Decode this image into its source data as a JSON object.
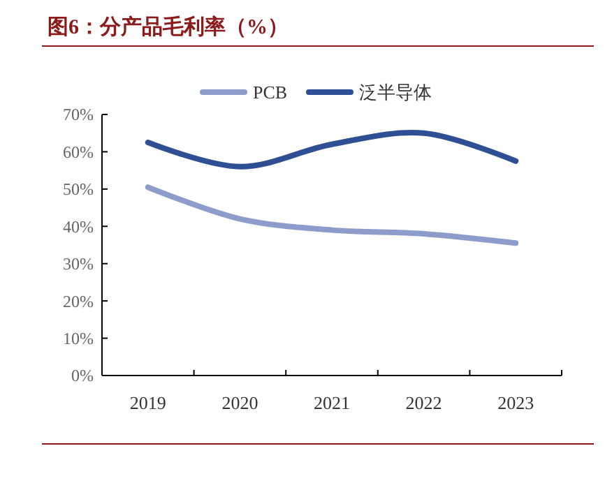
{
  "chart_data": {
    "type": "line",
    "title": "图6：分产品毛利率（%）",
    "categories": [
      "2019",
      "2020",
      "2021",
      "2022",
      "2023"
    ],
    "series": [
      {
        "name": "PCB",
        "color": "#8e9ccb",
        "values": [
          50.5,
          42,
          39,
          38,
          35.5
        ]
      },
      {
        "name": "泛半导体",
        "color": "#2f4f94",
        "values": [
          62.5,
          56,
          62,
          65,
          57.5
        ]
      }
    ],
    "ylim": [
      0,
      70
    ],
    "yticks": [
      {
        "value": 0,
        "label": "0%"
      },
      {
        "value": 10,
        "label": "10%"
      },
      {
        "value": 20,
        "label": "20%"
      },
      {
        "value": 30,
        "label": "30%"
      },
      {
        "value": 40,
        "label": "40%"
      },
      {
        "value": 50,
        "label": "50%"
      },
      {
        "value": 60,
        "label": "60%"
      },
      {
        "value": 70,
        "label": "70%"
      }
    ],
    "legend": "top",
    "grid": false,
    "marker": "none",
    "line_style": "solid"
  }
}
